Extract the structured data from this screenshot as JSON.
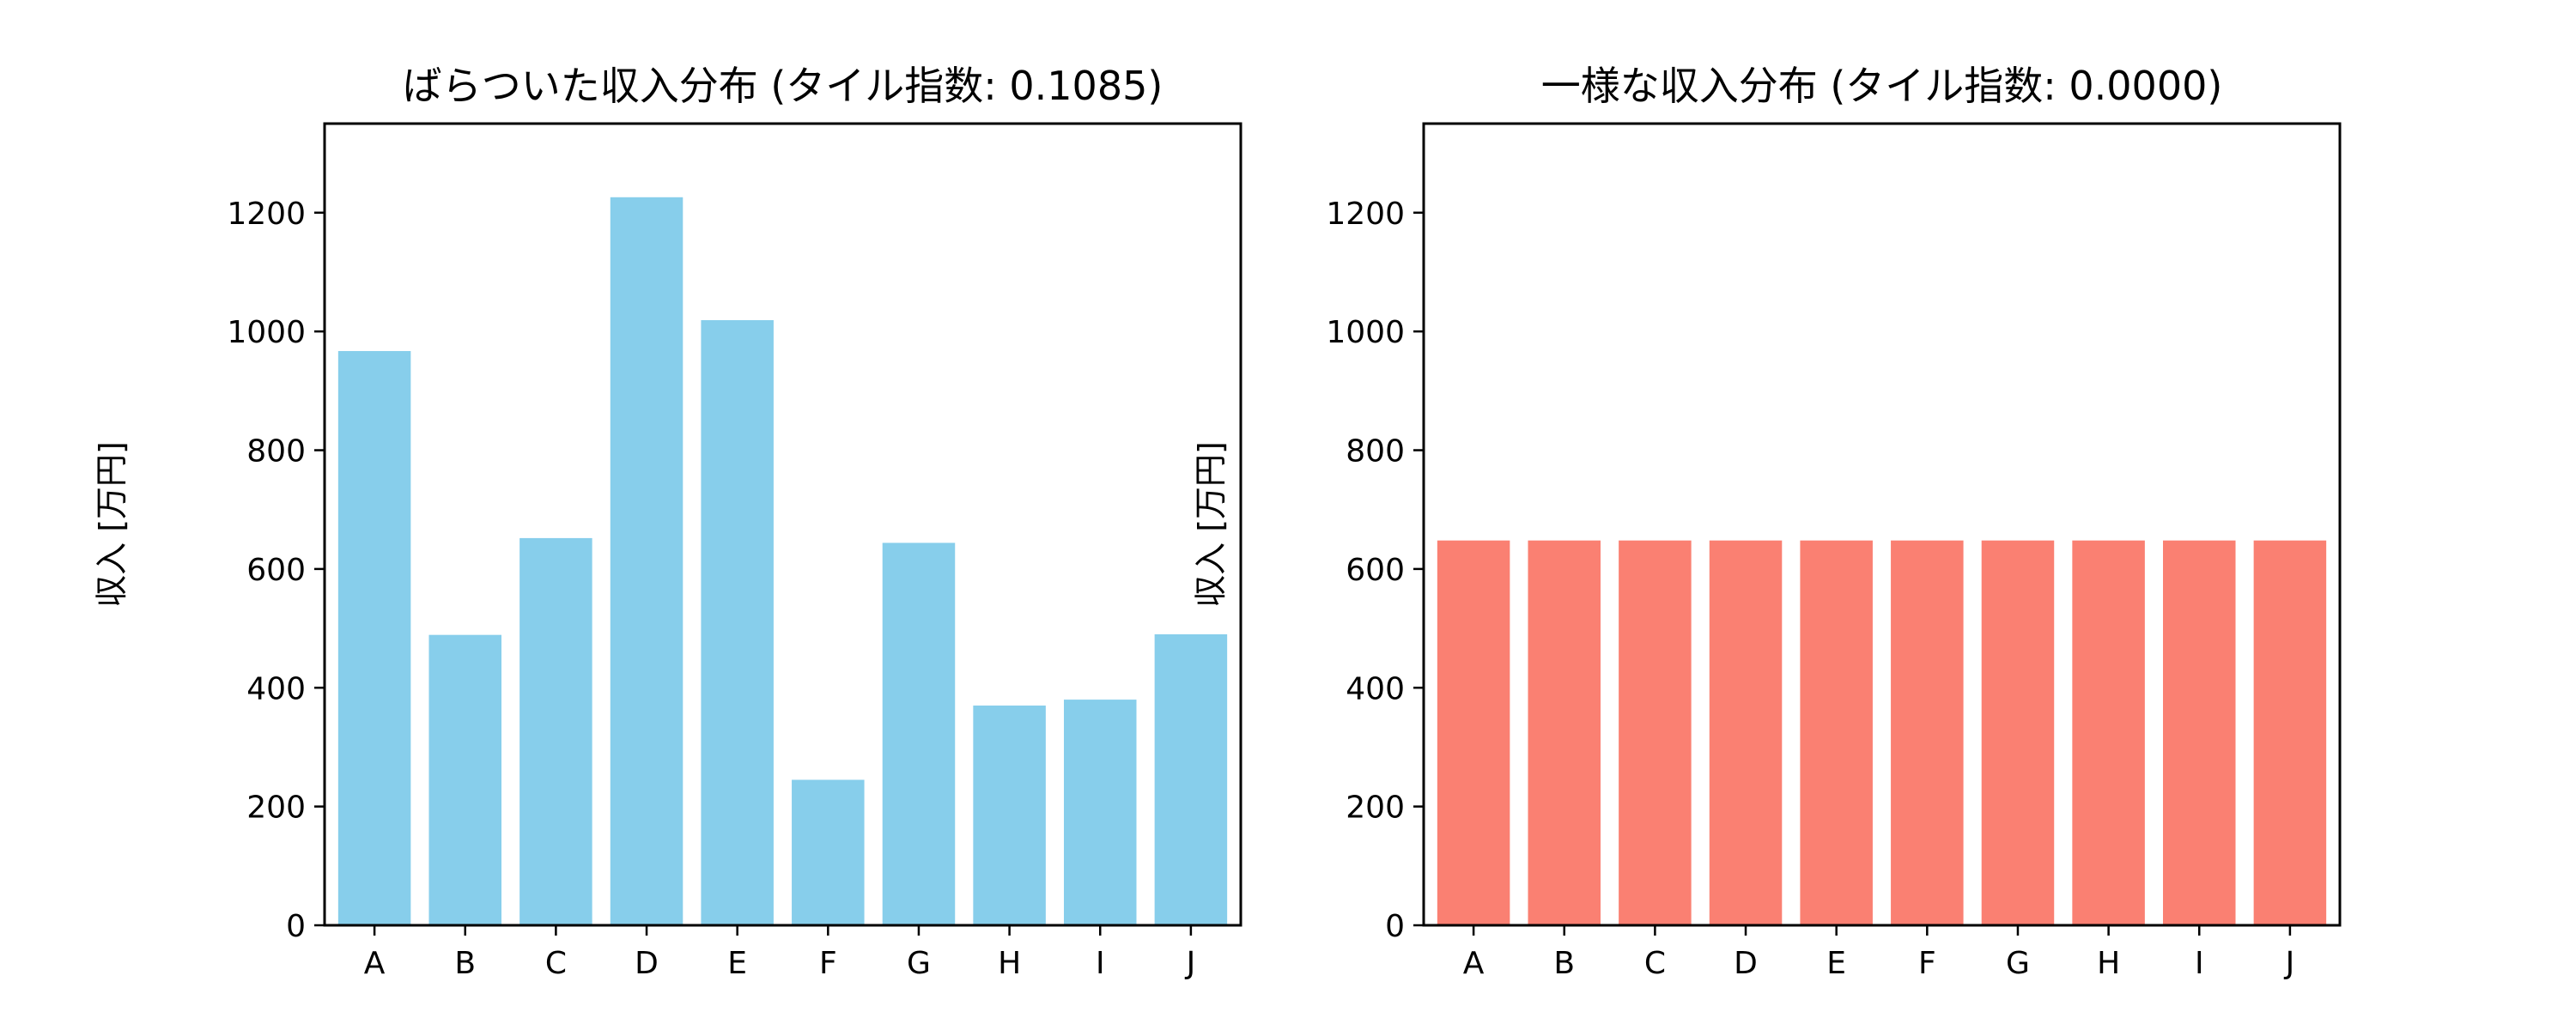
{
  "chart_data": [
    {
      "type": "bar",
      "title": "ばらついた収入分布 (タイル指数: 0.1085)",
      "xlabel": "",
      "ylabel": "収入 [万円]",
      "categories": [
        "A",
        "B",
        "C",
        "D",
        "E",
        "F",
        "G",
        "H",
        "I",
        "J"
      ],
      "values": [
        967,
        489,
        652,
        1226,
        1019,
        245,
        644,
        370,
        380,
        490
      ],
      "ylim": [
        0,
        1350
      ],
      "yticks": [
        0,
        200,
        400,
        600,
        800,
        1000,
        1200
      ],
      "color": "#87CEEB",
      "grid": false
    },
    {
      "type": "bar",
      "title": "一様な収入分布 (タイル指数: 0.0000)",
      "xlabel": "",
      "ylabel": "収入 [万円]",
      "categories": [
        "A",
        "B",
        "C",
        "D",
        "E",
        "F",
        "G",
        "H",
        "I",
        "J"
      ],
      "values": [
        648,
        648,
        648,
        648,
        648,
        648,
        648,
        648,
        648,
        648
      ],
      "ylim": [
        0,
        1350
      ],
      "yticks": [
        0,
        200,
        400,
        600,
        800,
        1000,
        1200
      ],
      "color": "#FA8072",
      "grid": false
    }
  ]
}
